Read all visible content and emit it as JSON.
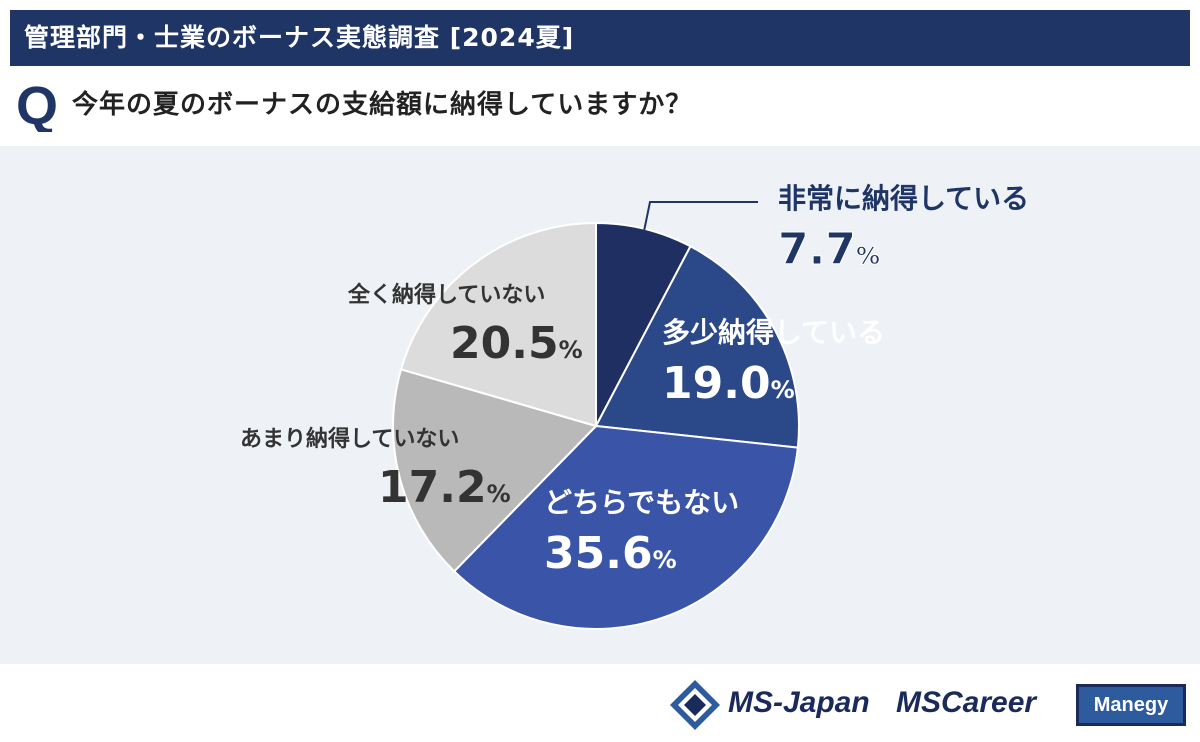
{
  "header": {
    "title": "管理部門・士業のボーナス実態調査 [2024夏]"
  },
  "question": {
    "mark": "Q",
    "text": "今年の夏のボーナスの支給額に納得していますか？"
  },
  "colors": {
    "header_bg": "#1f3566",
    "chart_bg": "#eef1f5",
    "very_satisfied": "#1f2f62",
    "somewhat_satisfied": "#2b4888",
    "neutral": "#3a55a8",
    "not_very": "#b9b9b9",
    "not_at_all": "#dcdcdc"
  },
  "chart_data": {
    "type": "pie",
    "start": "12 o'clock, clockwise",
    "slices": [
      {
        "label": "非常に納得している",
        "value": 7.7,
        "display": "7.7",
        "color": "#1f2f62",
        "label_color": "#1f3566"
      },
      {
        "label": "多少納得している",
        "value": 19.0,
        "display": "19.0",
        "color": "#2b4888",
        "label_color": "#ffffff"
      },
      {
        "label": "どちらでもない",
        "value": 35.6,
        "display": "35.6",
        "color": "#3a55a8",
        "label_color": "#ffffff"
      },
      {
        "label": "あまり納得していない",
        "value": 17.2,
        "display": "17.2",
        "color": "#b9b9b9",
        "label_color": "#333333"
      },
      {
        "label": "全く納得していない",
        "value": 20.5,
        "display": "20.5",
        "color": "#dcdcdc",
        "label_color": "#333333"
      }
    ],
    "unit": "%"
  },
  "footer": {
    "logo_ms_japan": "MS-Japan",
    "logo_ms_career": "MSCareer",
    "logo_manegy": "Manegy"
  }
}
